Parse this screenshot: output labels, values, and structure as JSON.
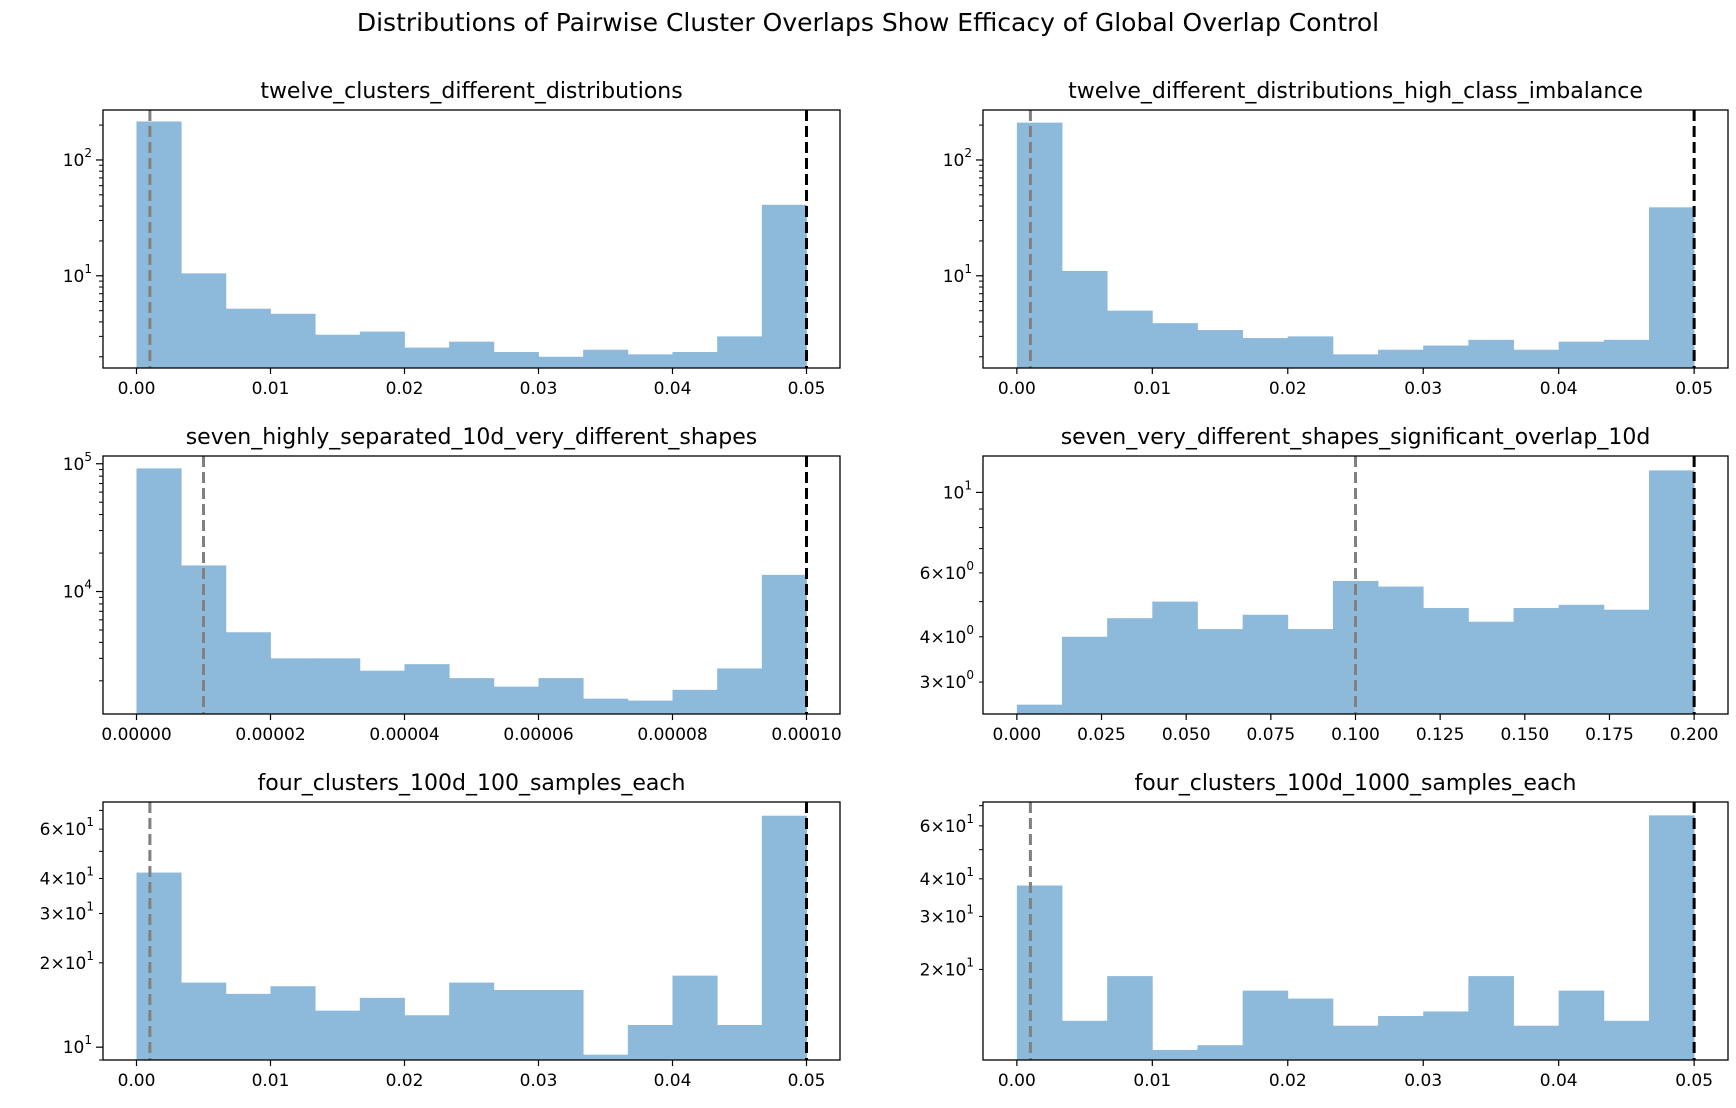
{
  "figure": {
    "suptitle": "Distributions of Pairwise Cluster Overlaps Show Efficacy of Global Overlap Control"
  },
  "colors": {
    "bar": "#8db9da",
    "min_line": "#808080",
    "max_line": "#000000",
    "axes": "#000000"
  },
  "chart_data": [
    {
      "type": "bar",
      "title": "twelve_clusters_different_distributions",
      "xlim": [
        -0.0025,
        0.0525
      ],
      "yscale": "log",
      "ylim": [
        1.6,
        270
      ],
      "xticks": [
        0.0,
        0.01,
        0.02,
        0.03,
        0.04,
        0.05
      ],
      "xtick_labels": [
        "0.00",
        "0.01",
        "0.02",
        "0.03",
        "0.04",
        "0.05"
      ],
      "yticks_major": [
        10,
        100
      ],
      "ytick_labels": [
        "10^1",
        "10^2"
      ],
      "bin_edges": [
        0,
        0.003333,
        0.006667,
        0.01,
        0.013333,
        0.016667,
        0.02,
        0.023333,
        0.026667,
        0.03,
        0.033333,
        0.036667,
        0.04,
        0.043333,
        0.046667,
        0.05
      ],
      "values": [
        215,
        10.5,
        5.2,
        4.7,
        3.1,
        3.3,
        2.4,
        2.7,
        2.2,
        2.0,
        2.3,
        2.1,
        2.2,
        3.0,
        41
      ],
      "min_overlap_line": 0.001,
      "max_overlap_line": 0.05
    },
    {
      "type": "bar",
      "title": "twelve_different_distributions_high_class_imbalance",
      "xlim": [
        -0.0025,
        0.0525
      ],
      "yscale": "log",
      "ylim": [
        1.6,
        270
      ],
      "xticks": [
        0.0,
        0.01,
        0.02,
        0.03,
        0.04,
        0.05
      ],
      "xtick_labels": [
        "0.00",
        "0.01",
        "0.02",
        "0.03",
        "0.04",
        "0.05"
      ],
      "yticks_major": [
        10,
        100
      ],
      "ytick_labels": [
        "10^1",
        "10^2"
      ],
      "bin_edges": [
        0,
        0.003333,
        0.006667,
        0.01,
        0.013333,
        0.016667,
        0.02,
        0.023333,
        0.026667,
        0.03,
        0.033333,
        0.036667,
        0.04,
        0.043333,
        0.046667,
        0.05
      ],
      "values": [
        210,
        11,
        5.0,
        3.9,
        3.4,
        2.9,
        3.0,
        2.1,
        2.3,
        2.5,
        2.8,
        2.3,
        2.7,
        2.8,
        39
      ],
      "min_overlap_line": 0.001,
      "max_overlap_line": 0.05
    },
    {
      "type": "bar",
      "title": "seven_highly_separated_10d_very_different_shapes",
      "xlim": [
        -5e-06,
        0.000105
      ],
      "yscale": "log",
      "ylim": [
        1100,
        115000
      ],
      "xticks": [
        0.0,
        2e-05,
        4e-05,
        6e-05,
        8e-05,
        0.0001
      ],
      "xtick_labels": [
        "0.00000",
        "0.00002",
        "0.00004",
        "0.00006",
        "0.00008",
        "0.00010"
      ],
      "yticks_major": [
        10000,
        100000
      ],
      "ytick_labels": [
        "10^4",
        "10^5"
      ],
      "bin_edges": [
        0,
        6.6667e-06,
        1.33333e-05,
        2e-05,
        2.66667e-05,
        3.33333e-05,
        4e-05,
        4.66667e-05,
        5.33333e-05,
        6e-05,
        6.66667e-05,
        7.33333e-05,
        8e-05,
        8.66667e-05,
        9.33333e-05,
        0.0001
      ],
      "values": [
        92000,
        16000,
        4800,
        3000,
        3000,
        2400,
        2700,
        2100,
        1800,
        2100,
        1450,
        1400,
        1700,
        2500,
        13500
      ],
      "min_overlap_line": 1e-05,
      "max_overlap_line": 0.0001
    },
    {
      "type": "bar",
      "title": "seven_very_different_shapes_significant_overlap_10d",
      "xlim": [
        -0.01,
        0.21
      ],
      "yscale": "log",
      "ylim": [
        2.45,
        12.6
      ],
      "xticks": [
        0.0,
        0.025,
        0.05,
        0.075,
        0.1,
        0.125,
        0.15,
        0.175,
        0.2
      ],
      "xtick_labels": [
        "0.000",
        "0.025",
        "0.050",
        "0.075",
        "0.100",
        "0.125",
        "0.150",
        "0.175",
        "0.200"
      ],
      "yticks_major": [
        10
      ],
      "ytick_labels": [
        "10^1"
      ],
      "yticks_minor_labeled": [
        3,
        4,
        6
      ],
      "ytick_minor_labels": [
        "3×10^0",
        "4×10^0",
        "6×10^0"
      ],
      "bin_edges": [
        0,
        0.013333,
        0.026667,
        0.04,
        0.053333,
        0.066667,
        0.08,
        0.093333,
        0.106667,
        0.12,
        0.133333,
        0.146667,
        0.16,
        0.173333,
        0.186667,
        0.2
      ],
      "values": [
        2.6,
        4.0,
        4.5,
        5.0,
        4.2,
        4.6,
        4.2,
        5.7,
        5.5,
        4.8,
        4.4,
        4.8,
        4.9,
        4.75,
        11.5
      ],
      "min_overlap_line": 0.1,
      "max_overlap_line": 0.2
    },
    {
      "type": "bar",
      "title": "four_clusters_100d_100_samples_each",
      "xlim": [
        -0.0025,
        0.0525
      ],
      "yscale": "log",
      "ylim": [
        9.0,
        75
      ],
      "xticks": [
        0.0,
        0.01,
        0.02,
        0.03,
        0.04,
        0.05
      ],
      "xtick_labels": [
        "0.00",
        "0.01",
        "0.02",
        "0.03",
        "0.04",
        "0.05"
      ],
      "yticks_major": [
        10
      ],
      "ytick_labels": [
        "10^1"
      ],
      "yticks_minor_labeled": [
        20,
        30,
        40,
        60
      ],
      "ytick_minor_labels": [
        "2×10^1",
        "3×10^1",
        "4×10^1",
        "6×10^1"
      ],
      "bin_edges": [
        0,
        0.003333,
        0.006667,
        0.01,
        0.013333,
        0.016667,
        0.02,
        0.023333,
        0.026667,
        0.03,
        0.033333,
        0.036667,
        0.04,
        0.043333,
        0.046667,
        0.05
      ],
      "values": [
        42,
        17,
        15.5,
        16.5,
        13.5,
        15,
        13,
        17,
        16,
        16,
        9.4,
        12,
        18,
        12,
        67
      ],
      "min_overlap_line": 0.001,
      "max_overlap_line": 0.05
    },
    {
      "type": "bar",
      "title": "four_clusters_100d_1000_samples_each",
      "xlim": [
        -0.0025,
        0.0525
      ],
      "yscale": "log",
      "ylim": [
        10.0,
        72
      ],
      "xticks": [
        0.0,
        0.01,
        0.02,
        0.03,
        0.04,
        0.05
      ],
      "xtick_labels": [
        "0.00",
        "0.01",
        "0.02",
        "0.03",
        "0.04",
        "0.05"
      ],
      "yticks_major": [],
      "ytick_labels": [],
      "yticks_minor_labeled": [
        20,
        30,
        40,
        60
      ],
      "ytick_minor_labels": [
        "2×10^1",
        "3×10^1",
        "4×10^1",
        "6×10^1"
      ],
      "bin_edges": [
        0,
        0.003333,
        0.006667,
        0.01,
        0.013333,
        0.016667,
        0.02,
        0.023333,
        0.026667,
        0.03,
        0.033333,
        0.036667,
        0.04,
        0.043333,
        0.046667,
        0.05
      ],
      "values": [
        38,
        13.5,
        19,
        10.8,
        11.2,
        17,
        16,
        13,
        14,
        14.5,
        19,
        13,
        17,
        13.5,
        65
      ],
      "min_overlap_line": 0.001,
      "max_overlap_line": 0.05
    }
  ]
}
